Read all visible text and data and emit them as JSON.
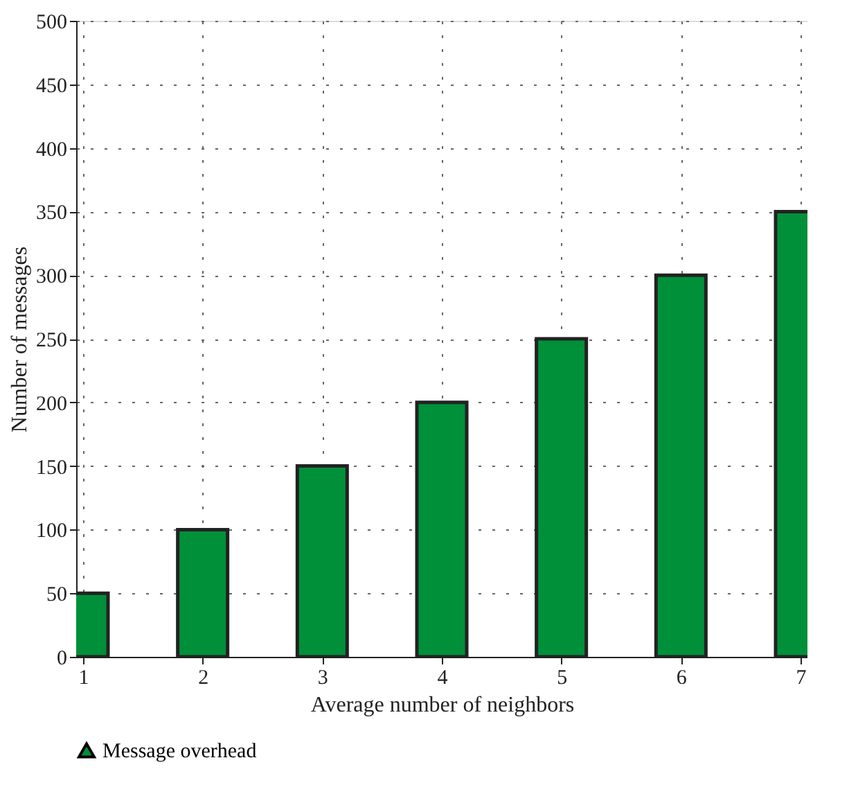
{
  "chart_data": {
    "type": "bar",
    "xlabel": "Average number of neighbors",
    "ylabel": "Number of messages",
    "x": [
      1,
      2,
      3,
      4,
      5,
      6,
      7
    ],
    "series": [
      {
        "name": "Message overhead",
        "color": "#009039",
        "values": [
          50,
          100,
          150,
          200,
          250,
          300,
          350
        ]
      }
    ],
    "xlim": [
      1,
      7
    ],
    "xticks": [
      1,
      2,
      3,
      4,
      5,
      6,
      7
    ],
    "ylim": [
      0,
      500
    ],
    "yticks": [
      0,
      50,
      100,
      150,
      200,
      250,
      300,
      350,
      400,
      450,
      500
    ],
    "grid": true,
    "legend": "bottom left",
    "marker": "triangle"
  }
}
